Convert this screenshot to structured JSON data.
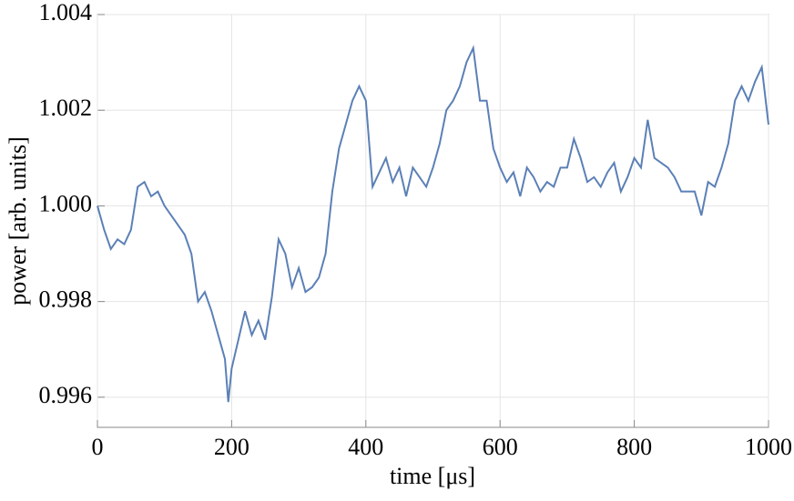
{
  "chart_data": {
    "type": "line",
    "xlabel": "time  [μs]",
    "ylabel": "power  [arb. units]",
    "x": [
      0,
      10,
      20,
      30,
      40,
      50,
      60,
      70,
      80,
      90,
      100,
      110,
      120,
      130,
      140,
      150,
      160,
      170,
      180,
      190,
      195,
      200,
      210,
      220,
      230,
      240,
      250,
      260,
      270,
      280,
      290,
      300,
      310,
      320,
      330,
      340,
      350,
      360,
      370,
      380,
      390,
      400,
      410,
      420,
      430,
      440,
      450,
      460,
      470,
      480,
      490,
      500,
      510,
      520,
      530,
      540,
      550,
      560,
      570,
      580,
      590,
      600,
      610,
      620,
      630,
      640,
      650,
      660,
      670,
      680,
      690,
      700,
      710,
      720,
      730,
      740,
      750,
      760,
      770,
      780,
      790,
      800,
      810,
      820,
      830,
      840,
      850,
      860,
      870,
      880,
      890,
      900,
      910,
      920,
      930,
      940,
      950,
      960,
      970,
      980,
      990,
      1000
    ],
    "series": [
      {
        "color": "#5b80b6",
        "values": [
          1.0,
          0.9995,
          0.9991,
          0.9993,
          0.9992,
          0.9995,
          1.0004,
          1.0005,
          1.0002,
          1.0003,
          1.0,
          0.9998,
          0.9996,
          0.9994,
          0.999,
          0.998,
          0.9982,
          0.9978,
          0.9973,
          0.9968,
          0.9959,
          0.9966,
          0.9972,
          0.9978,
          0.9973,
          0.9976,
          0.9972,
          0.9981,
          0.9993,
          0.999,
          0.9983,
          0.9987,
          0.9982,
          0.9983,
          0.9985,
          0.999,
          1.0003,
          1.0012,
          1.0017,
          1.0022,
          1.0025,
          1.0022,
          1.0004,
          1.0007,
          1.001,
          1.0005,
          1.0008,
          1.0002,
          1.0008,
          1.0006,
          1.0004,
          1.0008,
          1.0013,
          1.002,
          1.0022,
          1.0025,
          1.003,
          1.0033,
          1.0022,
          1.0022,
          1.0012,
          1.0008,
          1.0005,
          1.0007,
          1.0002,
          1.0008,
          1.0006,
          1.0003,
          1.0005,
          1.0004,
          1.0008,
          1.0008,
          1.0014,
          1.001,
          1.0005,
          1.0006,
          1.0004,
          1.0007,
          1.0009,
          1.0003,
          1.0006,
          1.001,
          1.0008,
          1.0018,
          1.001,
          1.0009,
          1.0008,
          1.0006,
          1.0003,
          1.0003,
          1.0003,
          0.9998,
          1.0005,
          1.0004,
          1.0008,
          1.0013,
          1.0022,
          1.0025,
          1.0022,
          1.0026,
          1.0029,
          1.0017
        ]
      }
    ],
    "xlim": [
      0,
      1000
    ],
    "xticks": [
      0,
      200,
      400,
      600,
      800,
      1000
    ],
    "ylim": [
      0.99537,
      1.004
    ],
    "yticks": [
      0.996,
      0.998,
      {
        "value": 1,
        "label": "1.000"
      },
      1.002,
      1.004
    ],
    "grid": true
  }
}
